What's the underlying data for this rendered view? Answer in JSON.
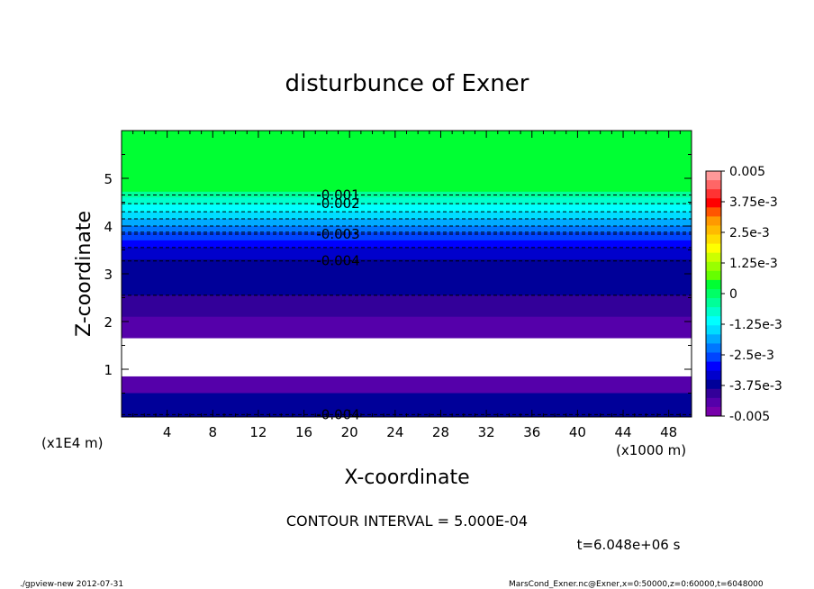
{
  "chart_data": {
    "type": "heatmap",
    "title": "disturbunce of Exner",
    "xlabel": "X-coordinate",
    "ylabel": "Z-coordinate",
    "x_unit": "(x1000 m)",
    "y_unit": "(x1E4 m)",
    "xlim": [
      0,
      50
    ],
    "ylim": [
      0,
      6
    ],
    "x_ticks": [
      4,
      8,
      12,
      16,
      20,
      24,
      28,
      32,
      36,
      40,
      44,
      48
    ],
    "y_ticks": [
      1,
      2,
      3,
      4,
      5
    ],
    "colorbar": {
      "min": -0.005,
      "max": 0.005,
      "labels": [
        "0.005",
        "3.75e-3",
        "2.5e-3",
        "1.25e-3",
        "0",
        "-1.25e-3",
        "-2.5e-3",
        "-3.75e-3",
        "-0.005"
      ],
      "colors": [
        "#ff9999",
        "#ff6666",
        "#ff3333",
        "#ff0000",
        "#ff5500",
        "#ff9900",
        "#ffbb00",
        "#ffdd00",
        "#ffff00",
        "#ccff00",
        "#99ff00",
        "#66ff00",
        "#00ff33",
        "#00ff66",
        "#00ff99",
        "#00ffcc",
        "#00ffff",
        "#00ddff",
        "#00aaff",
        "#0077ff",
        "#0044ff",
        "#0000ff",
        "#0000cc",
        "#000099",
        "#330099",
        "#5500aa",
        "#7700aa"
      ]
    },
    "bands": [
      {
        "z_top": 6.0,
        "z_bottom": 4.72,
        "color": "#00ff33"
      },
      {
        "z_top": 4.72,
        "z_bottom": 4.6,
        "color": "#00ff99"
      },
      {
        "z_top": 4.6,
        "z_bottom": 4.45,
        "color": "#00ffcc"
      },
      {
        "z_top": 4.45,
        "z_bottom": 4.3,
        "color": "#00ffff"
      },
      {
        "z_top": 4.3,
        "z_bottom": 4.15,
        "color": "#00ddff"
      },
      {
        "z_top": 4.15,
        "z_bottom": 4.0,
        "color": "#00aaff"
      },
      {
        "z_top": 4.0,
        "z_bottom": 3.87,
        "color": "#0077ff"
      },
      {
        "z_top": 3.87,
        "z_bottom": 3.7,
        "color": "#0044ff"
      },
      {
        "z_top": 3.7,
        "z_bottom": 3.55,
        "color": "#0000ff"
      },
      {
        "z_top": 3.55,
        "z_bottom": 3.3,
        "color": "#0000cc"
      },
      {
        "z_top": 3.3,
        "z_bottom": 2.55,
        "color": "#000099"
      },
      {
        "z_top": 2.55,
        "z_bottom": 2.1,
        "color": "#330099"
      },
      {
        "z_top": 2.1,
        "z_bottom": 1.65,
        "color": "#5500aa"
      },
      {
        "z_top": 1.65,
        "z_bottom": 0.85,
        "color": "#ffffff"
      },
      {
        "z_top": 0.85,
        "z_bottom": 0.5,
        "color": "#5500aa"
      },
      {
        "z_top": 0.5,
        "z_bottom": 0.0,
        "color": "#000099"
      }
    ],
    "contours": [
      {
        "z": 4.65,
        "label": "-0.001"
      },
      {
        "z": 4.47,
        "label": "-0.002"
      },
      {
        "z": 4.3,
        "label": ""
      },
      {
        "z": 4.15,
        "label": ""
      },
      {
        "z": 4.0,
        "label": ""
      },
      {
        "z": 3.87,
        "label": ""
      },
      {
        "z": 3.83,
        "label": "-0.003"
      },
      {
        "z": 3.55,
        "label": ""
      },
      {
        "z": 3.27,
        "label": "-0.004"
      },
      {
        "z": 2.55,
        "label": ""
      },
      {
        "z": 0.05,
        "label": "-0.004"
      }
    ]
  },
  "contour_interval": "CONTOUR INTERVAL = 5.000E-04",
  "time_label": "t=6.048e+06 s",
  "footer_left": "./gpview-new   2012-07-31",
  "footer_right": "MarsCond_Exner.nc@Exner,x=0:50000,z=0:60000,t=6048000"
}
